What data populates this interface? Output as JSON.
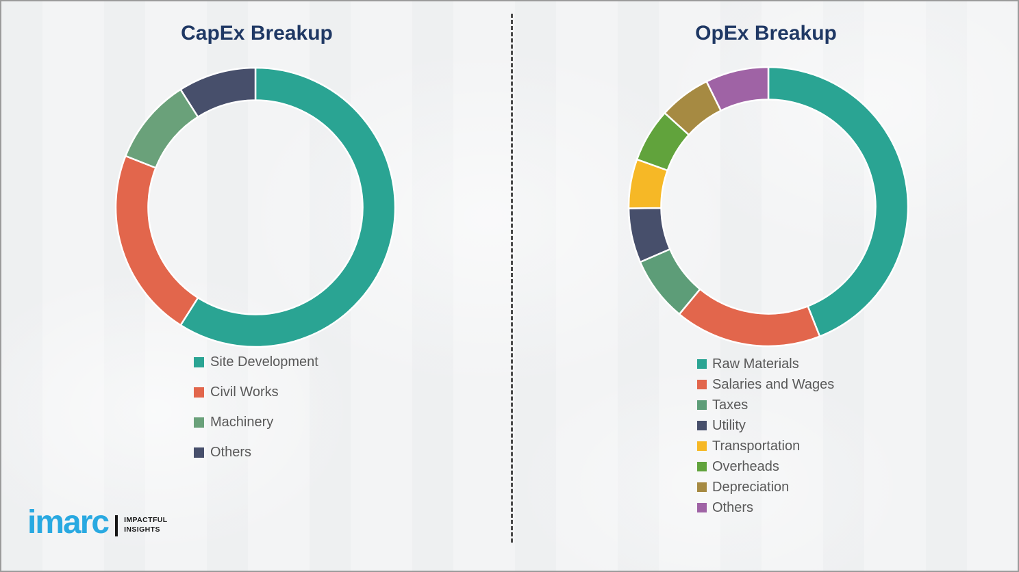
{
  "theme": {
    "page_bg": "#f2f3f4",
    "page_border": "#9b9b9b",
    "title_color": "#1f3864",
    "legend_text_color": "#595959",
    "divider_color": "#4a4a4a",
    "segment_gap_color": "#ffffff",
    "logo_color": "#29a9e1"
  },
  "chart_data": [
    {
      "type": "pie",
      "subtype": "donut",
      "title": "CapEx Breakup",
      "labels": [
        "Site Development",
        "Civil Works",
        "Machinery",
        "Others"
      ],
      "values": [
        59,
        22,
        10,
        9
      ],
      "colors": [
        "#2aa493",
        "#e2664c",
        "#6aa17a",
        "#474f6b"
      ],
      "legend_position": "below-left",
      "start_angle_deg": 0,
      "direction": "clockwise"
    },
    {
      "type": "pie",
      "subtype": "donut",
      "title": "OpEx Breakup",
      "labels": [
        "Raw Materials",
        "Salaries and Wages",
        "Taxes",
        "Utility",
        "Transportation",
        "Overheads",
        "Depreciation",
        "Others"
      ],
      "values": [
        44,
        17,
        7.5,
        6.3,
        5.7,
        6.2,
        6,
        7.3
      ],
      "colors": [
        "#2aa493",
        "#e2664c",
        "#5d9d78",
        "#474f6b",
        "#f6b826",
        "#61a33c",
        "#a68a42",
        "#9f63a5"
      ],
      "legend_position": "below-left",
      "start_angle_deg": 0,
      "direction": "clockwise"
    }
  ],
  "divider": {
    "style": "vertical-dashed"
  },
  "logo": {
    "wordmark": "imarc",
    "tagline_line1": "IMPACTFUL",
    "tagline_line2": "INSIGHTS"
  }
}
